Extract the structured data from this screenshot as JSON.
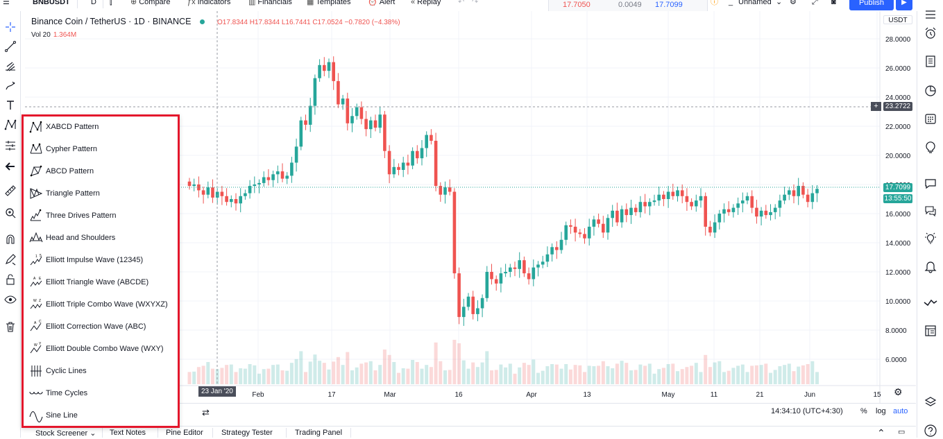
{
  "topbar": {
    "symbol": "BNBUSDT",
    "interval": "D",
    "compare": "Compare",
    "indicators": "Indicators",
    "financials": "Financials",
    "templates": "Templates",
    "alert": "Alert",
    "replay": "Replay",
    "quote_sell": "17.7050",
    "quote_spread": "0.0049",
    "quote_buy": "17.7099",
    "layout_name": "Unnamed",
    "publish": "Publish"
  },
  "legend": {
    "title": "Binance Coin / TetherUS · 1D · BINANCE",
    "ohlc": "O17.8344 H17.8344 L16.7441 C17.0524 −0.7820 (−4.38%)",
    "vol_label": "Vol 20",
    "vol_value": "1.364M"
  },
  "price_axis": {
    "currency": "USDT",
    "crosshair_price": "23.2722",
    "last_price": "17.7099",
    "countdown": "13:55:50"
  },
  "time_axis": {
    "crosshair_date": "23 Jan '20",
    "ticks": [
      "Feb",
      "17",
      "Mar",
      "16",
      "Apr",
      "13",
      "May",
      "11",
      "21",
      "Jun",
      "15"
    ]
  },
  "bottom": {
    "clock": "14:34:10 (UTC+4:30)",
    "percent": "%",
    "log": "log",
    "auto": "auto"
  },
  "tabs": [
    "Stock Screener",
    "Text Notes",
    "Pine Editor",
    "Strategy Tester",
    "Trading Panel"
  ],
  "pattern_menu": [
    {
      "label": "XABCD Pattern",
      "icon": "xabcd-pattern-icon"
    },
    {
      "label": "Cypher Pattern",
      "icon": "cypher-pattern-icon"
    },
    {
      "label": "ABCD Pattern",
      "icon": "abcd-pattern-icon"
    },
    {
      "label": "Triangle Pattern",
      "icon": "triangle-pattern-icon"
    },
    {
      "label": "Three Drives Pattern",
      "icon": "three-drives-pattern-icon"
    },
    {
      "label": "Head and Shoulders",
      "icon": "head-and-shoulders-icon"
    },
    {
      "label": "Elliott Impulse Wave (12345)",
      "icon": "elliott-impulse-wave-icon"
    },
    {
      "label": "Elliott Triangle Wave (ABCDE)",
      "icon": "elliott-triangle-wave-icon"
    },
    {
      "label": "Elliott Triple Combo Wave (WXYXZ)",
      "icon": "elliott-triple-combo-wave-icon"
    },
    {
      "label": "Elliott Correction Wave (ABC)",
      "icon": "elliott-correction-wave-icon"
    },
    {
      "label": "Elliott Double Combo Wave (WXY)",
      "icon": "elliott-double-combo-wave-icon"
    },
    {
      "label": "Cyclic Lines",
      "icon": "cyclic-lines-icon"
    },
    {
      "label": "Time Cycles",
      "icon": "time-cycles-icon"
    },
    {
      "label": "Sine Line",
      "icon": "sine-line-icon"
    }
  ],
  "chart_data": {
    "type": "candlestick",
    "yticks": [
      6,
      8,
      10,
      12,
      14,
      16,
      18,
      20,
      22,
      24,
      26,
      28
    ],
    "ylim": [
      5.5,
      28.5
    ],
    "up_color": "#26a69a",
    "down_color": "#ef5350",
    "closes": [
      17.9,
      18.0,
      17.6,
      17.3,
      17.8,
      17.1,
      17.5,
      17.2,
      16.8,
      17.0,
      16.7,
      17.2,
      17.4,
      17.9,
      18.0,
      18.1,
      18.5,
      18.3,
      18.7,
      18.9,
      18.4,
      18.6,
      19.5,
      20.6,
      22.4,
      22.1,
      23.4,
      25.3,
      26.2,
      25.8,
      26.4,
      25.1,
      23.5,
      23.9,
      22.2,
      22.7,
      23.3,
      22.5,
      21.8,
      22.4,
      21.9,
      22.8,
      20.3,
      18.7,
      19.2,
      19.0,
      19.5,
      19.3,
      20.3,
      19.8,
      20.5,
      21.4,
      21.0,
      17.9,
      17.3,
      17.8,
      17.5,
      11.9,
      8.9,
      9.6,
      10.3,
      9.1,
      9.5,
      10.2,
      12.0,
      11.5,
      11.2,
      11.9,
      12.0,
      12.3,
      12.2,
      12.8,
      11.9,
      11.5,
      12.3,
      12.5,
      12.7,
      13.2,
      13.7,
      13.5,
      14.2,
      15.2,
      15.1,
      14.7,
      14.6,
      14.3,
      15.1,
      15.6,
      15.3,
      14.7,
      15.7,
      16.2,
      15.4,
      16.3,
      15.9,
      16.4,
      16.1,
      16.8,
      16.5,
      16.8,
      16.9,
      17.3,
      17.0,
      17.5,
      17.2,
      17.6,
      17.2,
      16.8,
      16.5,
      16.9,
      17.2,
      15.1,
      14.7,
      15.4,
      16.0,
      16.3,
      16.1,
      16.4,
      16.7,
      16.9,
      17.2,
      16.4,
      15.8,
      16.2,
      15.9,
      16.1,
      16.4,
      16.9,
      17.3,
      17.6,
      17.2,
      17.9,
      17.3,
      16.8,
      17.4,
      17.7
    ]
  }
}
